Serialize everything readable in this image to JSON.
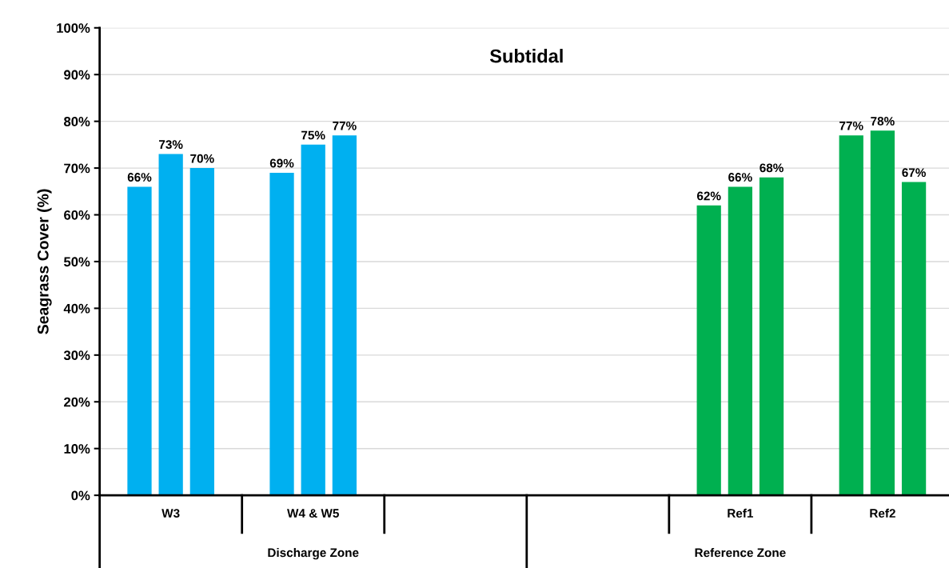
{
  "chart_data": {
    "type": "bar",
    "title": "Subtidal",
    "ylabel": "Seagrass Cover (%)",
    "categories": [
      "W3",
      "W4 & W5",
      null,
      null,
      "Ref1",
      "Ref2"
    ],
    "series": [
      {
        "colors": [
          "#00b0f0",
          "#00b0f0",
          null,
          null,
          "#00b050",
          "#00b050"
        ],
        "values": [
          66,
          69,
          null,
          null,
          62,
          77
        ],
        "value_labels": [
          "66%",
          "69%",
          null,
          null,
          "62%",
          "77%"
        ]
      },
      {
        "colors": [
          "#00b0f0",
          "#00b0f0",
          null,
          null,
          "#00b050",
          "#00b050"
        ],
        "values": [
          73,
          75,
          null,
          null,
          66,
          78
        ],
        "value_labels": [
          "73%",
          "75%",
          null,
          null,
          "66%",
          "78%"
        ]
      },
      {
        "colors": [
          "#00b0f0",
          "#00b0f0",
          null,
          null,
          "#00b050",
          "#00b050"
        ],
        "values": [
          70,
          77,
          null,
          null,
          68,
          67
        ],
        "value_labels": [
          "70%",
          "77%",
          null,
          null,
          "68%",
          "67%"
        ]
      }
    ],
    "ylim": [
      0,
      100
    ],
    "yticks": [
      {
        "value": 0,
        "label": "0%"
      },
      {
        "value": 10,
        "label": "10%"
      },
      {
        "value": 20,
        "label": "20%"
      },
      {
        "value": 30,
        "label": "30%"
      },
      {
        "value": 40,
        "label": "40%"
      },
      {
        "value": 50,
        "label": "50%"
      },
      {
        "value": 60,
        "label": "60%"
      },
      {
        "value": 70,
        "label": "70%"
      },
      {
        "value": 80,
        "label": "80%"
      },
      {
        "value": 90,
        "label": "90%"
      },
      {
        "value": 100,
        "label": "100%"
      }
    ],
    "grid": "y",
    "annotations": [
      "Discharge Zone",
      "Reference Zone"
    ]
  }
}
